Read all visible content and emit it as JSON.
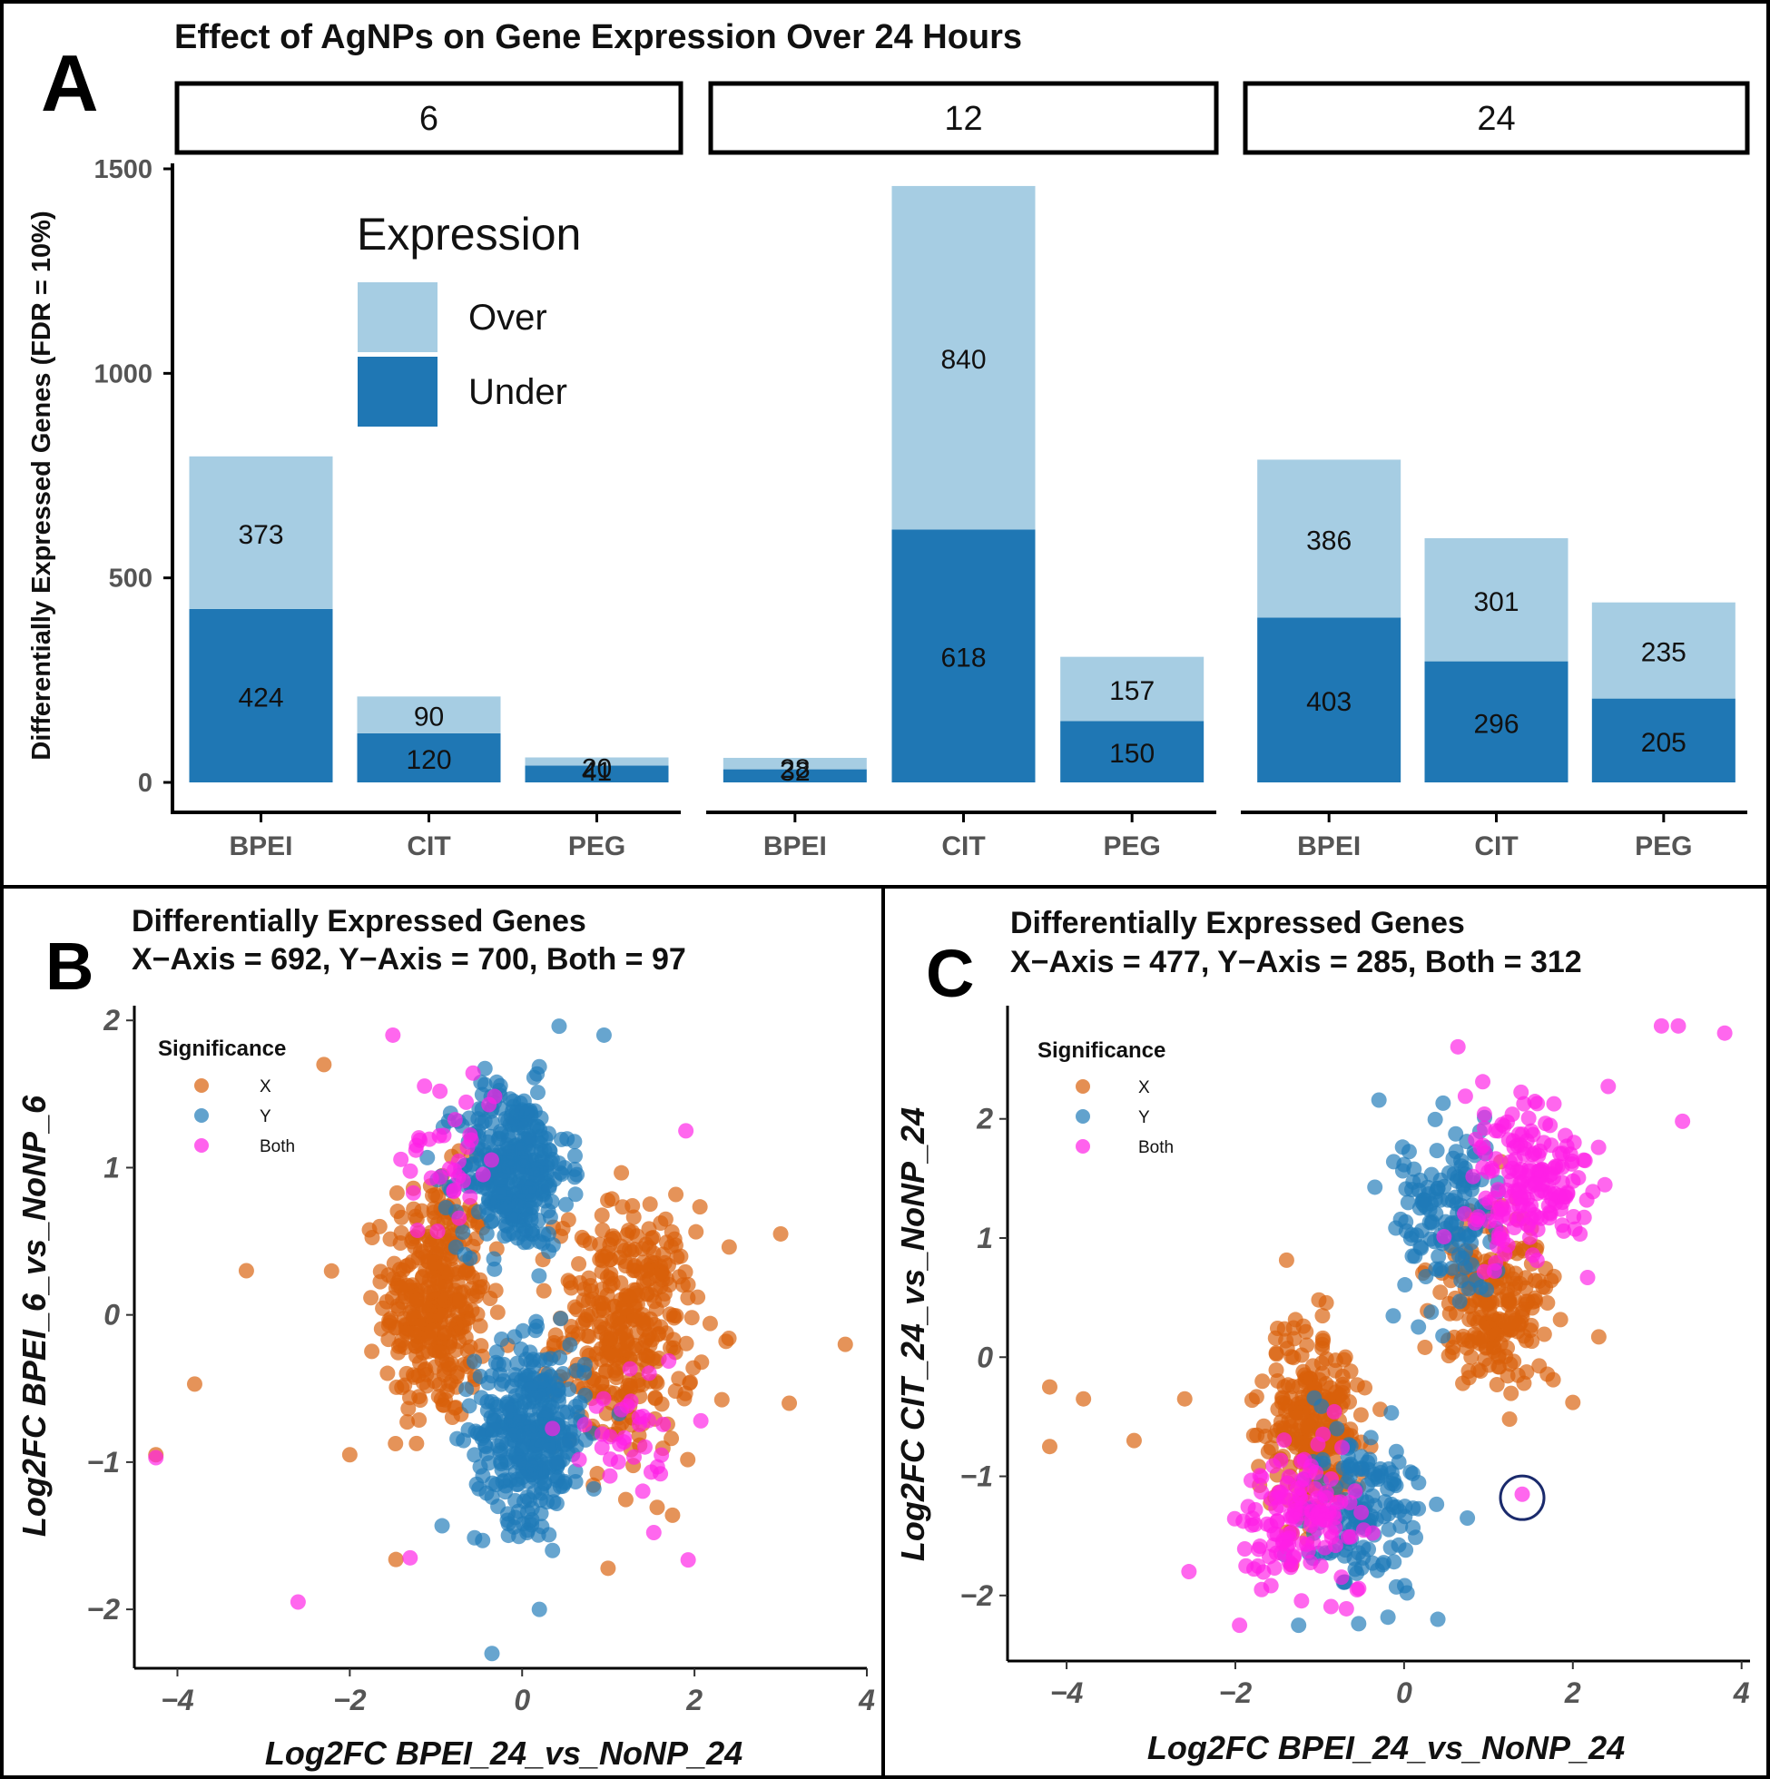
{
  "chart_data": [
    {
      "panel": "A",
      "type": "bar",
      "stacked": true,
      "title": "Effect of AgNPs on Gene Expression Over 24 Hours",
      "ylabel": "Differentially Expressed Genes (FDR = 10%)",
      "ylim": [
        0,
        1500
      ],
      "yticks": [
        0,
        500,
        1000,
        1500
      ],
      "legend": {
        "title": "Expression",
        "entries": [
          "Over",
          "Under"
        ],
        "position": "top-left"
      },
      "colors": {
        "Over": "#a6cde3",
        "Under": "#1f77b4"
      },
      "facets": [
        {
          "label": "6",
          "categories": [
            "BPEI",
            "CIT",
            "PEG"
          ],
          "over": [
            373,
            90,
            20
          ],
          "under": [
            424,
            120,
            41
          ]
        },
        {
          "label": "12",
          "categories": [
            "BPEI",
            "CIT",
            "PEG"
          ],
          "over": [
            28,
            840,
            157
          ],
          "under": [
            32,
            618,
            150
          ]
        },
        {
          "label": "24",
          "categories": [
            "BPEI",
            "CIT",
            "PEG"
          ],
          "over": [
            386,
            301,
            235
          ],
          "under": [
            403,
            296,
            205
          ]
        }
      ]
    },
    {
      "panel": "B",
      "type": "scatter",
      "title": "Differentially Expressed Genes",
      "subtitle": "X−Axis = 692, Y−Axis = 700, Both = 97",
      "xlabel": "Log2FC BPEI_24_vs_NoNP_24",
      "ylabel": "Log2FC BPEI_6_vs_NoNP_6",
      "xlim": [
        -4.5,
        4
      ],
      "ylim": [
        -2.4,
        2.1
      ],
      "xticks": [
        -4,
        -2,
        0,
        2,
        4
      ],
      "yticks": [
        -2,
        -1,
        0,
        1,
        2
      ],
      "legend": {
        "title": "Significance",
        "entries": [
          "X",
          "Y",
          "Both"
        ],
        "position": "top-left"
      },
      "colors": {
        "X": "#d9600a",
        "Y": "#1f7ab8",
        "Both": "#ff1fe6"
      },
      "clusters": [
        {
          "group": "X",
          "cx": -1.0,
          "cy": 0.1,
          "sx": 0.3,
          "sy": 0.42,
          "n": 360
        },
        {
          "group": "X",
          "cx": 1.2,
          "cy": -0.1,
          "sx": 0.4,
          "sy": 0.42,
          "n": 360
        },
        {
          "group": "Y",
          "cx": -0.1,
          "cy": 1.0,
          "sx": 0.32,
          "sy": 0.28,
          "n": 350
        },
        {
          "group": "Y",
          "cx": 0.1,
          "cy": -0.8,
          "sx": 0.32,
          "sy": 0.3,
          "n": 350
        },
        {
          "group": "Both",
          "cx": -0.8,
          "cy": 1.1,
          "sx": 0.3,
          "sy": 0.3,
          "n": 35
        },
        {
          "group": "Both",
          "cx": 1.2,
          "cy": -0.8,
          "sx": 0.35,
          "sy": 0.3,
          "n": 35
        }
      ],
      "outliers": [
        {
          "group": "X",
          "x": -4.25,
          "y": -0.95
        },
        {
          "group": "X",
          "x": -3.8,
          "y": -0.47
        },
        {
          "group": "X",
          "x": -3.2,
          "y": 0.3
        },
        {
          "group": "X",
          "x": -2.3,
          "y": 1.7
        },
        {
          "group": "X",
          "x": -2.0,
          "y": -0.95
        },
        {
          "group": "X",
          "x": 3.75,
          "y": -0.2
        },
        {
          "group": "X",
          "x": 3.0,
          "y": 0.55
        },
        {
          "group": "X",
          "x": 3.1,
          "y": -0.6
        },
        {
          "group": "Y",
          "x": -0.35,
          "y": -2.3
        },
        {
          "group": "Y",
          "x": 0.2,
          "y": -2.0
        },
        {
          "group": "Y",
          "x": 0.95,
          "y": 1.9
        },
        {
          "group": "Both",
          "x": -2.6,
          "y": -1.95
        },
        {
          "group": "Both",
          "x": -4.25,
          "y": -0.97
        },
        {
          "group": "Both",
          "x": -1.5,
          "y": 1.9
        },
        {
          "group": "Both",
          "x": 1.9,
          "y": 1.25
        },
        {
          "group": "Both",
          "x": -1.3,
          "y": -1.65
        }
      ]
    },
    {
      "panel": "C",
      "type": "scatter",
      "title": "Differentially Expressed Genes",
      "subtitle": "X−Axis = 477, Y−Axis = 285, Both = 312",
      "xlabel": "Log2FC BPEI_24_vs_NoNP_24",
      "ylabel": "Log2FC CIT_24_vs_NoNP_24",
      "xlim": [
        -4.7,
        4.1
      ],
      "ylim": [
        -2.55,
        2.95
      ],
      "xticks": [
        -4,
        -2,
        0,
        2,
        4
      ],
      "yticks": [
        -2,
        -1,
        0,
        1,
        2
      ],
      "legend": {
        "title": "Significance",
        "entries": [
          "X",
          "Y",
          "Both"
        ],
        "position": "top-left"
      },
      "colors": {
        "X": "#d9600a",
        "Y": "#1f7ab8",
        "Both": "#ff1fe6"
      },
      "clusters": [
        {
          "group": "X",
          "cx": -1.1,
          "cy": -0.55,
          "sx": 0.3,
          "sy": 0.42,
          "n": 260
        },
        {
          "group": "X",
          "cx": 1.1,
          "cy": 0.45,
          "sx": 0.32,
          "sy": 0.35,
          "n": 217
        },
        {
          "group": "Y",
          "cx": 0.5,
          "cy": 1.2,
          "sx": 0.32,
          "sy": 0.35,
          "n": 140
        },
        {
          "group": "Y",
          "cx": -0.5,
          "cy": -1.25,
          "sx": 0.35,
          "sy": 0.35,
          "n": 145
        },
        {
          "group": "Both",
          "cx": 1.5,
          "cy": 1.55,
          "sx": 0.4,
          "sy": 0.35,
          "n": 180
        },
        {
          "group": "Both",
          "cx": -1.2,
          "cy": -1.35,
          "sx": 0.35,
          "sy": 0.3,
          "n": 132
        }
      ],
      "outliers": [
        {
          "group": "X",
          "x": -4.2,
          "y": -0.25
        },
        {
          "group": "X",
          "x": -4.2,
          "y": -0.75
        },
        {
          "group": "X",
          "x": -3.8,
          "y": -0.35
        },
        {
          "group": "X",
          "x": -3.2,
          "y": -0.7
        },
        {
          "group": "X",
          "x": -2.6,
          "y": -0.35
        },
        {
          "group": "X",
          "x": 2.0,
          "y": -0.38
        },
        {
          "group": "X",
          "x": 1.25,
          "y": -0.52
        },
        {
          "group": "Both",
          "x": 3.8,
          "y": 2.72
        },
        {
          "group": "Both",
          "x": 3.05,
          "y": 2.78
        },
        {
          "group": "Both",
          "x": 3.25,
          "y": 2.78
        },
        {
          "group": "Both",
          "x": 3.3,
          "y": 1.98
        },
        {
          "group": "Both",
          "x": 1.4,
          "y": -1.15
        },
        {
          "group": "Both",
          "x": -2.55,
          "y": -1.8
        },
        {
          "group": "Both",
          "x": -1.95,
          "y": -2.25
        },
        {
          "group": "Y",
          "x": 0.4,
          "y": -2.2
        },
        {
          "group": "Y",
          "x": 0.75,
          "y": -1.35
        },
        {
          "group": "Y",
          "x": -1.25,
          "y": -2.25
        }
      ],
      "highlight": {
        "x": 1.4,
        "y": -1.18
      }
    }
  ]
}
